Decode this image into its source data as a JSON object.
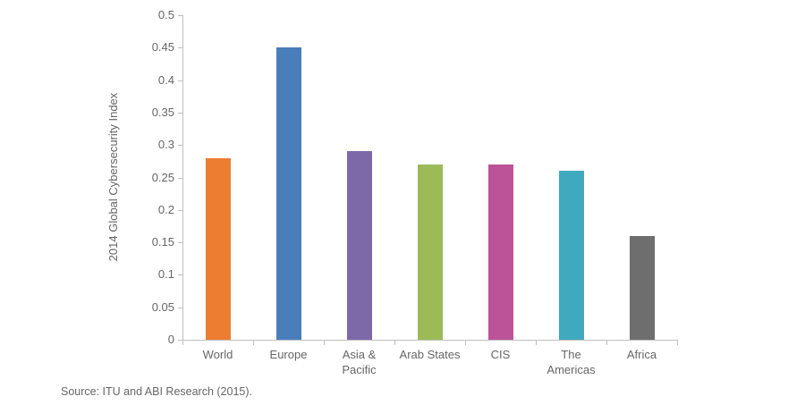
{
  "chart_data": {
    "type": "bar",
    "categories": [
      "World",
      "Europe",
      "Asia &\nPacific",
      "Arab States",
      "CIS",
      "The\nAmericas",
      "Africa"
    ],
    "values": [
      0.28,
      0.45,
      0.29,
      0.27,
      0.27,
      0.26,
      0.16
    ],
    "bar_colors": [
      "#ED7D31",
      "#4A7EBB",
      "#7D68A8",
      "#9CBB58",
      "#BC5398",
      "#3FA9C0",
      "#6E6E6E"
    ],
    "title": "",
    "xlabel": "",
    "ylabel": "2014 Global Cybersecurity Index",
    "ylim": [
      0,
      0.5
    ],
    "ytick_step": 0.05,
    "ytick_labels": [
      "0",
      "0.05",
      "0.1",
      "0.15",
      "0.2",
      "0.25",
      "0.3",
      "0.35",
      "0.4",
      "0.45",
      "0.5"
    ],
    "grid": false,
    "legend": null
  },
  "source_note": "Source: ITU and ABI Research (2015).",
  "style_colors": {
    "axis_line": "#bfbfbf",
    "label_text": "#666666",
    "background": "#ffffff"
  }
}
